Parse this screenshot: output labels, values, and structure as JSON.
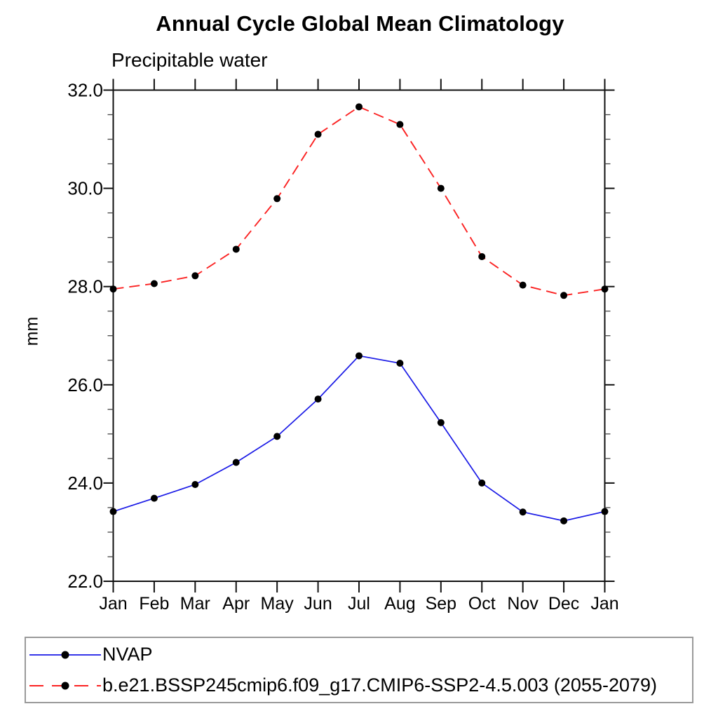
{
  "chart_data": {
    "type": "line",
    "title": "Annual Cycle Global Mean Climatology",
    "subtitle": "Precipitable water",
    "ylabel": "mm",
    "xlabel": "",
    "categories": [
      "Jan",
      "Feb",
      "Mar",
      "Apr",
      "May",
      "Jun",
      "Jul",
      "Aug",
      "Sep",
      "Oct",
      "Nov",
      "Dec",
      "Jan"
    ],
    "ylim": [
      22.0,
      32.0
    ],
    "y_major_tick_labels": [
      "22.0",
      "24.0",
      "26.0",
      "28.0",
      "30.0",
      "32.0"
    ],
    "y_minor_step": 0.5,
    "grid": false,
    "legend_position": "bottom-left-box",
    "frame_color": "#111111",
    "marker": "filled-circle",
    "marker_color": "#000000",
    "series": [
      {
        "name": "NVAP",
        "color": "#1a1ae6",
        "line_style": "solid",
        "values": [
          23.42,
          23.69,
          23.97,
          24.42,
          24.95,
          25.71,
          26.59,
          26.44,
          25.23,
          24.0,
          23.41,
          23.23,
          23.42
        ]
      },
      {
        "name": "b.e21.BSSP245cmip6.f09_g17.CMIP6-SSP2-4.5.003 (2055-2079)",
        "color": "#fb2222",
        "line_style": "dashed",
        "values": [
          27.95,
          28.06,
          28.22,
          28.76,
          29.79,
          31.1,
          31.66,
          31.3,
          30.0,
          28.61,
          28.03,
          27.82,
          27.95
        ]
      }
    ]
  }
}
